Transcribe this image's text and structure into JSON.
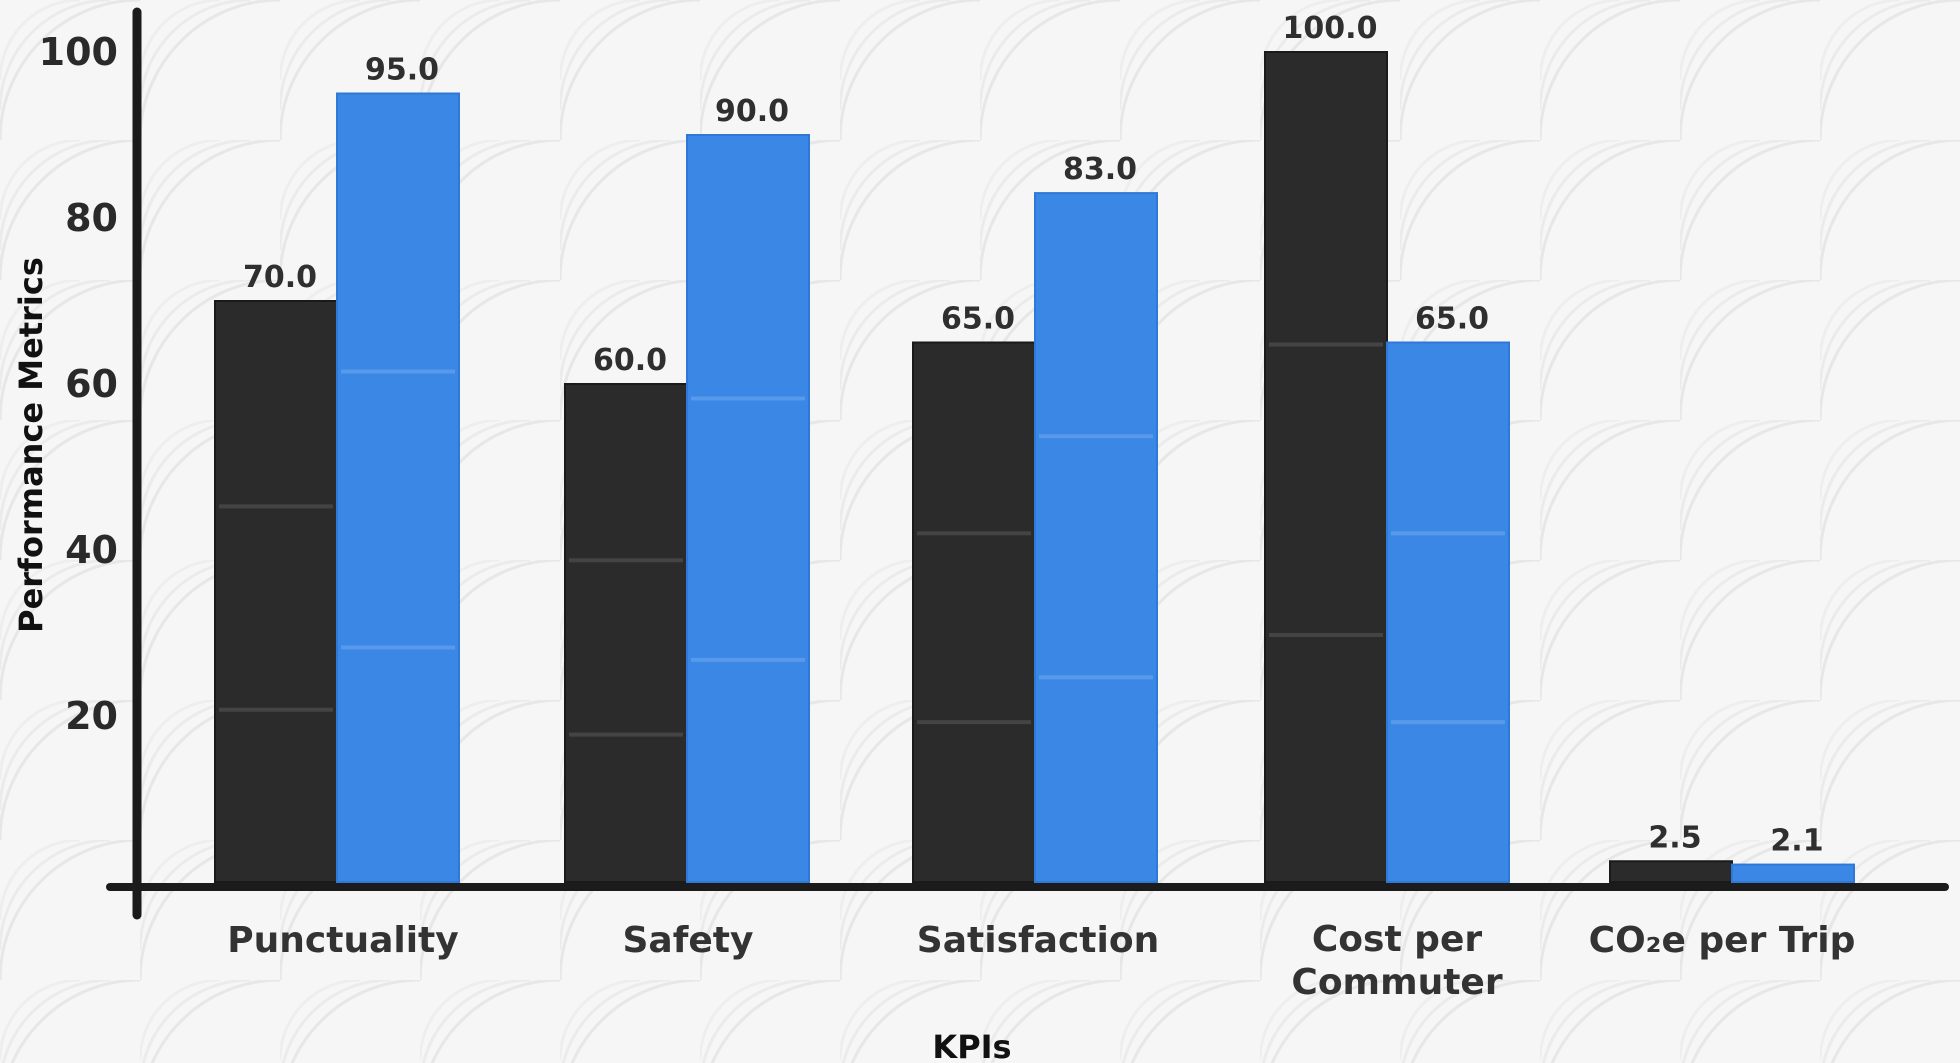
{
  "chart_data": {
    "type": "bar",
    "xlabel": "KPIs",
    "ylabel": "Performance Metrics",
    "categories": [
      "Punctuality",
      "Safety",
      "Satisfaction",
      "Cost per\nCommuter",
      "CO₂e per Trip"
    ],
    "series": [
      {
        "values": [
          70.0,
          60.0,
          65.0,
          100.0,
          2.5
        ],
        "color": "#2b2b2b"
      },
      {
        "values": [
          95.0,
          90.0,
          83.0,
          65.0,
          2.1
        ],
        "color": "#3b87e6"
      }
    ],
    "value_labels": [
      [
        "70.0",
        "60.0",
        "65.0",
        "100.0",
        "2.5"
      ],
      [
        "95.0",
        "90.0",
        "83.0",
        "65.0",
        "2.1"
      ]
    ],
    "yticks": [
      20,
      40,
      60,
      80,
      100
    ],
    "ytick_labels": [
      "20",
      "40",
      "60",
      "80",
      "100"
    ],
    "ylim": [
      0,
      101
    ],
    "grid": false,
    "legend": "none"
  }
}
